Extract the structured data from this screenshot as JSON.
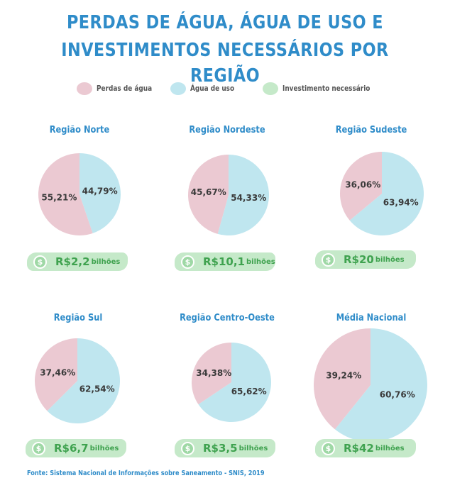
{
  "title_line1": "PERDAS DE ÁGUA, ÁGUA DE USO E",
  "title_line2": "INVESTIMENTOS NECESSÁRIOS POR REGIÃO",
  "colors": {
    "loss": "#ebc9d2",
    "use": "#bfe6ef",
    "invest": "#c5e9c9",
    "title": "#2f8cc9",
    "invest_text": "#3fa24f"
  },
  "legend": [
    {
      "label": "Perdas de água",
      "color": "#ebc9d2"
    },
    {
      "label": "Água de uso",
      "color": "#bfe6ef"
    },
    {
      "label": "Investimento necessário",
      "color": "#c5e9c9"
    }
  ],
  "chart_data": [
    {
      "type": "pie",
      "title": "Região Norte",
      "labels": [
        "Perdas de água",
        "Água de uso"
      ],
      "values": [
        55.21,
        44.79
      ],
      "value_labels": [
        "55,21%",
        "44,79%"
      ],
      "investment": "R$2,2",
      "investment_unit": "bilhões"
    },
    {
      "type": "pie",
      "title": "Região Nordeste",
      "labels": [
        "Perdas de água",
        "Água de uso"
      ],
      "values": [
        45.67,
        54.33
      ],
      "value_labels": [
        "45,67%",
        "54,33%"
      ],
      "investment": "R$10,1",
      "investment_unit": "bilhões"
    },
    {
      "type": "pie",
      "title": "Região Sudeste",
      "labels": [
        "Perdas de água",
        "Água de uso"
      ],
      "values": [
        36.06,
        63.94
      ],
      "value_labels": [
        "36,06%",
        "63,94%"
      ],
      "investment": "R$20",
      "investment_unit": "bilhões"
    },
    {
      "type": "pie",
      "title": "Região Sul",
      "labels": [
        "Perdas de água",
        "Água de uso"
      ],
      "values": [
        37.46,
        62.54
      ],
      "value_labels": [
        "37,46%",
        "62,54%"
      ],
      "investment": "R$6,7",
      "investment_unit": "bilhões"
    },
    {
      "type": "pie",
      "title": "Região Centro-Oeste",
      "labels": [
        "Perdas de água",
        "Água de uso"
      ],
      "values": [
        34.38,
        65.62
      ],
      "value_labels": [
        "34,38%",
        "65,62%"
      ],
      "investment": "R$3,5",
      "investment_unit": "bilhões"
    },
    {
      "type": "pie",
      "title": "Média Nacional",
      "labels": [
        "Perdas de água",
        "Água de uso"
      ],
      "values": [
        39.24,
        60.76
      ],
      "value_labels": [
        "39,24%",
        "60,76%"
      ],
      "investment": "R$42",
      "investment_unit": "bilhões"
    }
  ],
  "dollar_symbol": "$",
  "source": "Fonte: Sistema Nacional de Informações sobre Saneamento - SNIS, 2019"
}
